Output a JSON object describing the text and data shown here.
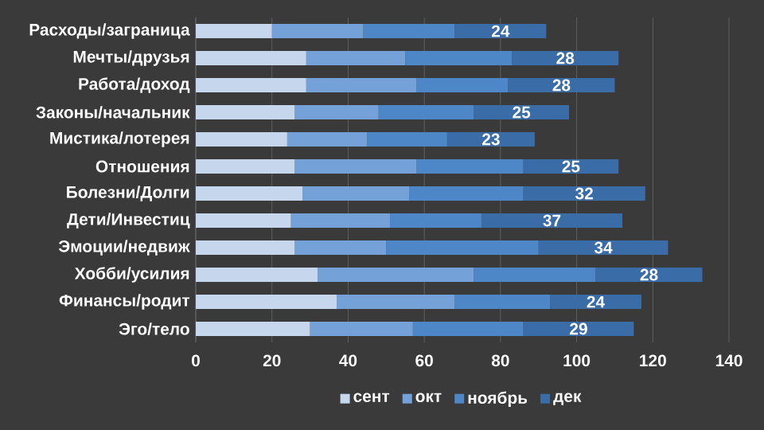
{
  "chart_data": {
    "type": "bar",
    "orientation": "horizontal",
    "stacked": true,
    "categories": [
      "Расходы/заграница",
      "Мечты/друзья",
      "Работа/доход",
      "Законы/начальник",
      "Мистика/лотерея",
      "Отношения",
      "Болезни/Долги",
      "Дети/Инвестиц",
      "Эмоции/недвиж",
      "Хобби/усилия",
      "Финансы/родит",
      "Эго/тело"
    ],
    "series": [
      {
        "name": "сент",
        "color": "#c6d6ec",
        "values": [
          20,
          29,
          29,
          26,
          24,
          26,
          28,
          25,
          26,
          32,
          37,
          30
        ]
      },
      {
        "name": "окт",
        "color": "#74a2d8",
        "values": [
          24,
          26,
          29,
          22,
          21,
          32,
          28,
          26,
          24,
          41,
          31,
          27
        ]
      },
      {
        "name": "ноябрь",
        "color": "#4d87c7",
        "values": [
          24,
          28,
          24,
          25,
          21,
          28,
          30,
          24,
          40,
          32,
          25,
          29
        ]
      },
      {
        "name": "дек",
        "color": "#3a6ca8",
        "values": [
          24,
          28,
          28,
          25,
          23,
          25,
          32,
          37,
          34,
          28,
          24,
          29
        ],
        "value_labels": [
          "24",
          "28",
          "28",
          "25",
          "23",
          "25",
          "32",
          "37",
          "34",
          "28",
          "24",
          "29"
        ]
      }
    ],
    "xlim": [
      0,
      140
    ],
    "xticks": [
      0,
      20,
      40,
      60,
      80,
      100,
      120,
      140
    ],
    "grid": "x",
    "legend": "bottom"
  }
}
